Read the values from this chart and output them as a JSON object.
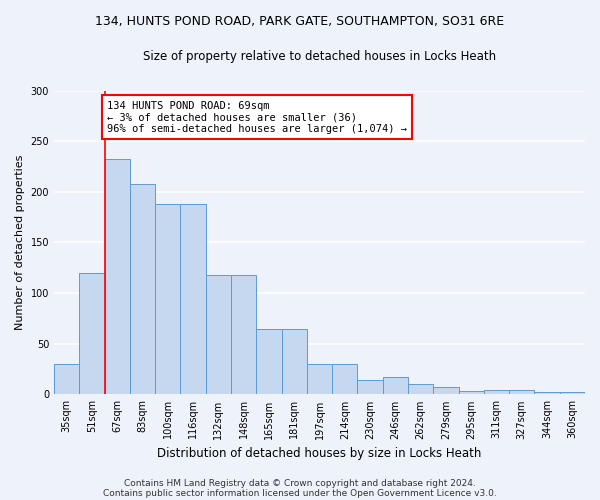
{
  "title": "134, HUNTS POND ROAD, PARK GATE, SOUTHAMPTON, SO31 6RE",
  "subtitle": "Size of property relative to detached houses in Locks Heath",
  "xlabel": "Distribution of detached houses by size in Locks Heath",
  "ylabel": "Number of detached properties",
  "categories": [
    "35sqm",
    "51sqm",
    "67sqm",
    "83sqm",
    "100sqm",
    "116sqm",
    "132sqm",
    "148sqm",
    "165sqm",
    "181sqm",
    "197sqm",
    "214sqm",
    "230sqm",
    "246sqm",
    "262sqm",
    "279sqm",
    "295sqm",
    "311sqm",
    "327sqm",
    "344sqm",
    "360sqm"
  ],
  "values": [
    30,
    120,
    232,
    208,
    188,
    188,
    118,
    118,
    65,
    65,
    30,
    30,
    14,
    17,
    10,
    7,
    3,
    4,
    4,
    2,
    2
  ],
  "bar_color": "#c5d8f0",
  "bar_edge_color": "#5b9bd5",
  "annotation_line1": "134 HUNTS POND ROAD: 69sqm",
  "annotation_line2": "← 3% of detached houses are smaller (36)",
  "annotation_line3": "96% of semi-detached houses are larger (1,074) →",
  "annotation_box_color": "white",
  "annotation_box_edge_color": "red",
  "vline_x": 1.5,
  "vline_color": "red",
  "ylim": [
    0,
    300
  ],
  "yticks": [
    0,
    50,
    100,
    150,
    200,
    250,
    300
  ],
  "footer1": "Contains HM Land Registry data © Crown copyright and database right 2024.",
  "footer2": "Contains public sector information licensed under the Open Government Licence v3.0.",
  "background_color": "#eef2fb",
  "grid_color": "#ffffff",
  "title_fontsize": 9,
  "subtitle_fontsize": 8.5,
  "ylabel_fontsize": 8,
  "xlabel_fontsize": 8.5,
  "tick_fontsize": 7,
  "annotation_fontsize": 7.5,
  "footer_fontsize": 6.5
}
